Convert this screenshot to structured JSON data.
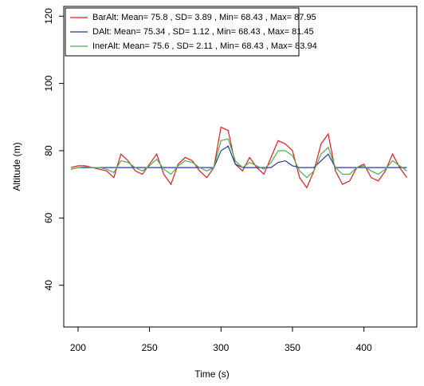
{
  "chart_data": {
    "type": "line",
    "xlabel": "Time (s)",
    "ylabel": "Altitude (m)",
    "x": [
      195,
      200,
      205,
      210,
      215,
      220,
      225,
      230,
      235,
      240,
      245,
      250,
      255,
      260,
      265,
      270,
      275,
      280,
      285,
      290,
      295,
      300,
      305,
      310,
      315,
      320,
      325,
      330,
      335,
      340,
      345,
      350,
      355,
      360,
      365,
      370,
      375,
      380,
      385,
      390,
      395,
      400,
      405,
      410,
      415,
      420,
      425,
      430
    ],
    "series": [
      {
        "name": "BarAlt: Mean= 75.8 , SD= 3.89 , Min= 68.43 , Max= 87.95",
        "color": "#e41a1c",
        "values": [
          75,
          75.5,
          75.5,
          75,
          74.5,
          74,
          72,
          79,
          77,
          74,
          73,
          76,
          79,
          73,
          70,
          76,
          78,
          77,
          74,
          72,
          75,
          87,
          86,
          76,
          74,
          78,
          75,
          73,
          78,
          83,
          82,
          80,
          72,
          69,
          74,
          82,
          85,
          74,
          70,
          71,
          75,
          76,
          72,
          71,
          74,
          79,
          75,
          72
        ]
      },
      {
        "name": "DAlt: Mean= 75.34 , SD= 1.12 , Min= 68.43 , Max= 81.45",
        "color": "#1f3f9f",
        "values": [
          74.5,
          75,
          75,
          75,
          75,
          75,
          75,
          75,
          75,
          75,
          75,
          75,
          75,
          75,
          75,
          75,
          75,
          75,
          75,
          75,
          75,
          80,
          81.4,
          76,
          75,
          75,
          75,
          75,
          75,
          76.5,
          77,
          75.5,
          75,
          75,
          75,
          77,
          79,
          75,
          75,
          75,
          75,
          75,
          75,
          75,
          75,
          75,
          75,
          75
        ]
      },
      {
        "name": "InerAlt: Mean= 75.6 , SD= 2.11 , Min= 68.43 , Max= 83.94",
        "color": "#4daf4a",
        "values": [
          74.5,
          75,
          75.2,
          75,
          75,
          74.5,
          73.5,
          77,
          76.5,
          75,
          74,
          75.5,
          77.5,
          74.5,
          73,
          75.5,
          77,
          76.5,
          75,
          74,
          75,
          83,
          83.5,
          77,
          75,
          76.5,
          75.5,
          74.5,
          76.5,
          80,
          80,
          78.5,
          74,
          72,
          74,
          79,
          81,
          75,
          73,
          73,
          75,
          75.5,
          74,
          73,
          74.5,
          77,
          75.5,
          74
        ]
      }
    ],
    "xlim": [
      190,
      437
    ],
    "xticks": [
      200,
      250,
      300,
      350,
      400
    ],
    "ylim": [
      27.6,
      122.9
    ],
    "yticks": [
      40,
      60,
      80,
      100,
      120
    ],
    "legend": "top-left"
  }
}
